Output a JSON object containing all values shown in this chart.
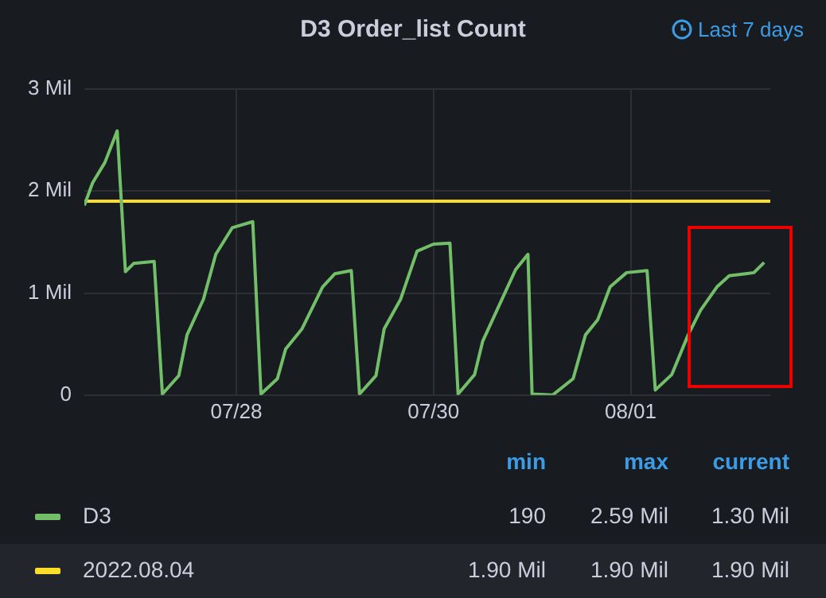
{
  "chart_data": {
    "type": "line",
    "title": "D3 Order_list Count",
    "annotations": [
      "Last 7 days",
      "min",
      "max",
      "current",
      "190",
      "2.59 Mil",
      "1.30 Mil",
      "1.90 Mil",
      "1.90 Mil",
      "1.90 Mil"
    ],
    "xlim": [
      "--07-26T11:00",
      "--08-02T10:00"
    ],
    "xticks": [
      {
        "value": "--07-28",
        "label": "07/28"
      },
      {
        "value": "--07-30",
        "label": "07/30"
      },
      {
        "value": "--08-01",
        "label": "08/01"
      }
    ],
    "ylim": [
      0,
      3
    ],
    "yticks": [
      {
        "value": 0,
        "label": "0"
      },
      {
        "value": 1,
        "label": "1 Mil"
      },
      {
        "value": 2,
        "label": "2 Mil"
      },
      {
        "value": 3,
        "label": "3 Mil"
      }
    ],
    "grid": true,
    "legend": "bottom",
    "marker": "none",
    "line_style": "solid",
    "series": [
      {
        "name": "D3",
        "color": "#73bf69",
        "x": [
          "--07-26T11:00",
          "--07-26T13:00",
          "--07-26T16:00",
          "--07-26T19:00",
          "--07-26T21:00",
          "--07-26T23:00",
          "--07-27T04:00",
          "--07-27T06:00",
          "--07-27T10:00",
          "--07-27T12:00",
          "--07-27T16:00",
          "--07-27T19:00",
          "--07-27T23:00",
          "--07-28T04:00",
          "--07-28T06:00",
          "--07-28T10:00",
          "--07-28T12:00",
          "--07-28T16:00",
          "--07-28T21:00",
          "--07-29T00:00",
          "--07-29T04:00",
          "--07-29T06:00",
          "--07-29T10:00",
          "--07-29T12:00",
          "--07-29T16:00",
          "--07-29T20:00",
          "--07-30T00:00",
          "--07-30T04:00",
          "--07-30T06:00",
          "--07-30T10:00",
          "--07-30T12:00",
          "--07-30T16:00",
          "--07-30T20:00",
          "--07-30T23:00",
          "--07-31T00:00",
          "--07-31T05:00",
          "--07-31T10:00",
          "--07-31T13:00",
          "--07-31T16:00",
          "--07-31T19:00",
          "--07-31T23:00",
          "--08-01T04:00",
          "--08-01T06:00",
          "--08-01T10:00",
          "--08-01T14:00",
          "--08-01T17:00",
          "--08-01T21:00",
          "--08-02T00:00",
          "--08-02T04:00",
          "--08-02T06:00",
          "--08-02T08:30"
        ],
        "values": [
          1.86,
          2.08,
          2.28,
          2.59,
          1.21,
          1.29,
          1.31,
          0.01,
          0.19,
          0.59,
          0.94,
          1.38,
          1.64,
          1.7,
          0.01,
          0.16,
          0.45,
          0.65,
          1.06,
          1.19,
          1.22,
          0.01,
          0.19,
          0.65,
          0.94,
          1.41,
          1.48,
          1.49,
          0.01,
          0.2,
          0.53,
          0.88,
          1.23,
          1.38,
          0.01,
          0,
          0.16,
          0.59,
          0.74,
          1.06,
          1.2,
          1.22,
          0.05,
          0.2,
          0.59,
          0.83,
          1.06,
          1.17,
          1.19,
          1.2,
          1.3
        ]
      },
      {
        "name": "2022.08.04",
        "color": "#fade2a",
        "x": [
          "--07-26T11:00",
          "--08-02T10:00"
        ],
        "values": [
          1.9,
          1.9
        ]
      }
    ]
  }
}
